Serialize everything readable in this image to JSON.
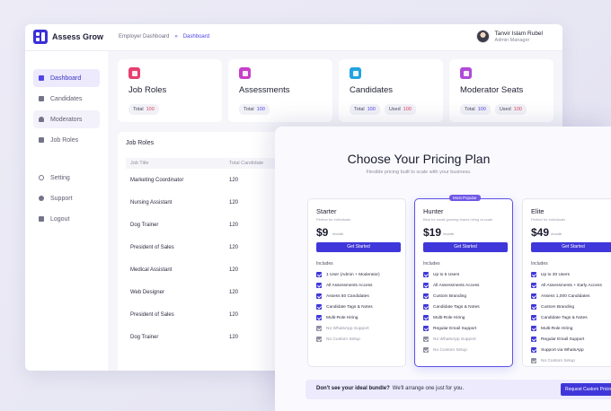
{
  "brand": {
    "name": "Assess Grow",
    "accent": "#3a2fd6"
  },
  "breadcrumb": {
    "root": "Employer Dashboard",
    "separator": "»",
    "current": "Dashboard"
  },
  "user": {
    "name": "Tanvir Islam Rubel",
    "role": "Admin Manager"
  },
  "sidebar": {
    "items": [
      {
        "label": "Dashboard",
        "icon": "grid-icon",
        "active": true
      },
      {
        "label": "Candidates",
        "icon": "id-card-icon"
      },
      {
        "label": "Moderators",
        "icon": "person-icon"
      },
      {
        "label": "Job Roles",
        "icon": "briefcase-icon"
      }
    ],
    "footer_items": [
      {
        "label": "Setting",
        "icon": "gear-icon"
      },
      {
        "label": "Support",
        "icon": "help-icon"
      },
      {
        "label": "Logout",
        "icon": "logout-icon"
      }
    ]
  },
  "stats": [
    {
      "title": "Job Roles",
      "icon": "briefcase-icon",
      "color": "#e83f6f",
      "pills": [
        {
          "label": "Total",
          "value": "100"
        }
      ]
    },
    {
      "title": "Assessments",
      "icon": "clipboard-icon",
      "color": "#c640c9",
      "pills": [
        {
          "label": "Total",
          "value": "100"
        }
      ]
    },
    {
      "title": "Candidates",
      "icon": "people-icon",
      "color": "#22a3e0",
      "pills": [
        {
          "label": "Total",
          "value": "100"
        },
        {
          "label": "Used",
          "value": "100"
        }
      ]
    },
    {
      "title": "Moderator Seats",
      "icon": "person-icon",
      "color": "#b04ad8",
      "pills": [
        {
          "label": "Total",
          "value": "100"
        },
        {
          "label": "Used",
          "value": "100"
        }
      ]
    }
  ],
  "job_roles": {
    "title": "Job Roles",
    "columns": [
      "Job Title",
      "Total Candidate"
    ],
    "rows": [
      [
        "Marketing Coordinator",
        "120"
      ],
      [
        "Nursing Assistant",
        "120"
      ],
      [
        "Dog Trainer",
        "120"
      ],
      [
        "President of Sales",
        "120"
      ],
      [
        "Medical Assistant",
        "120"
      ],
      [
        "Web Designer",
        "120"
      ],
      [
        "President of Sales",
        "120"
      ],
      [
        "Dog Trainer",
        "120"
      ]
    ]
  },
  "pricing": {
    "title": "Choose Your Pricing Plan",
    "subtitle": "Flexible pricing built to scale with your business.",
    "includes_label": "Includes",
    "plans": [
      {
        "name": "Starter",
        "desc": "Perfect for individuals",
        "price": "$9",
        "period": "/month",
        "cta": "Get Started",
        "popular": false,
        "features": [
          {
            "text": "1 User (Admin + Moderator)",
            "on": true
          },
          {
            "text": "All Assessments Access",
            "on": true
          },
          {
            "text": "Assess 50 Candidates",
            "on": true
          },
          {
            "text": "Candidate Tags & Notes",
            "on": true
          },
          {
            "text": "Multi-Role Hiring",
            "on": true
          },
          {
            "text": "No WhatsApp Support",
            "on": false
          },
          {
            "text": "No Custom Setup",
            "on": false
          }
        ]
      },
      {
        "name": "Hunter",
        "desc": "Best for small growing teams hiring at scale",
        "price": "$19",
        "period": "/month",
        "cta": "Get Started",
        "popular": true,
        "badge": "Most Popular",
        "features": [
          {
            "text": "Up to 5 Users",
            "on": true
          },
          {
            "text": "All Assessments Access",
            "on": true
          },
          {
            "text": "Custom Branding",
            "on": true
          },
          {
            "text": "Candidate Tags & Notes",
            "on": true
          },
          {
            "text": "Multi-Role Hiring",
            "on": true
          },
          {
            "text": "Regular Email Support",
            "on": true
          },
          {
            "text": "No WhatsApp Support",
            "on": false
          },
          {
            "text": "No Custom Setup",
            "on": false
          }
        ]
      },
      {
        "name": "Elite",
        "desc": "Perfect for individuals",
        "price": "$49",
        "period": "/month",
        "cta": "Get Started",
        "popular": false,
        "features": [
          {
            "text": "Up to 30 Users",
            "on": true
          },
          {
            "text": "All Assessments + Early Access",
            "on": true
          },
          {
            "text": "Assess 1,000 Candidates",
            "on": true
          },
          {
            "text": "Custom Branding",
            "on": true
          },
          {
            "text": "Candidate Tags & Notes",
            "on": true
          },
          {
            "text": "Multi-Role Hiring",
            "on": true
          },
          {
            "text": "Regular Email Support",
            "on": true
          },
          {
            "text": "Support via WhatsApp",
            "on": true
          },
          {
            "text": "No Custom Setup",
            "on": false
          }
        ]
      }
    ],
    "footer": {
      "question": "Don't see your ideal bundle?",
      "text": "We'll arrange one just for you.",
      "button": "Request Custom Pricing"
    }
  }
}
